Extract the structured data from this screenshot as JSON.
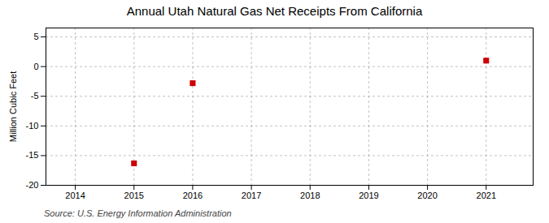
{
  "chart_data": {
    "type": "scatter",
    "title": "Annual Utah Natural Gas Net Receipts From California",
    "ylabel": "Million Cubic Feet",
    "annotations": [
      "Source: U.S. Energy Information Administration"
    ],
    "x": [
      2015,
      2016,
      2021
    ],
    "values": [
      -16.3,
      -2.8,
      1.0
    ],
    "color": "#cc0000",
    "marker": "square",
    "xlim": [
      2013.5,
      2021.8
    ],
    "ylim": [
      -20,
      6.5
    ],
    "xticks": [
      2014,
      2015,
      2016,
      2017,
      2018,
      2019,
      2020,
      2021
    ],
    "yticks": [
      -20,
      -15,
      -10,
      -5,
      0,
      5
    ],
    "grid": true
  }
}
